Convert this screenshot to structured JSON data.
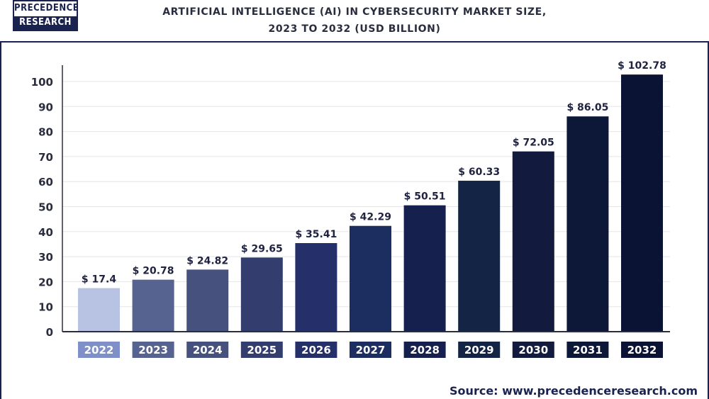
{
  "logo": {
    "line1": "PRECEDENCE",
    "line2": "RESEARCH"
  },
  "title_lines": [
    "ARTIFICIAL INTELLIGENCE (AI) IN CYBERSECURITY MARKET  SIZE,",
    "2023 TO 2032 (USD BILLION)"
  ],
  "source": "Source: www.precedenceresearch.com",
  "chart_data": {
    "type": "bar",
    "title": "ARTIFICIAL INTELLIGENCE (AI) IN CYBERSECURITY MARKET  SIZE, 2023 TO 2032 (USD BILLION)",
    "categories": [
      "2022",
      "2023",
      "2024",
      "2025",
      "2026",
      "2027",
      "2028",
      "2029",
      "2030",
      "2031",
      "2032"
    ],
    "values": [
      17.4,
      20.78,
      24.82,
      29.65,
      35.41,
      42.29,
      50.51,
      60.33,
      72.05,
      86.05,
      102.78
    ],
    "value_labels": [
      "$ 17.4",
      "$ 20.78",
      "$ 24.82",
      "$ 29.65",
      "$  35.41",
      "$ 42.29",
      "$ 50.51",
      "$ 60.33",
      "$ 72.05",
      "$ 86.05",
      "$ 102.78"
    ],
    "yticks": [
      0,
      10,
      20,
      30,
      40,
      50,
      60,
      70,
      80,
      90,
      100
    ],
    "ylim": [
      0,
      100
    ],
    "grid": true,
    "bar_colors": [
      "#b8c2e3",
      "#56628f",
      "#47517e",
      "#333e6e",
      "#25306a",
      "#1c2d60",
      "#15204f",
      "#142445",
      "#121a3e",
      "#0d1838",
      "#0b1335"
    ],
    "label_colors": [
      "#7f8fc7",
      "#56628f",
      "#47517e",
      "#333e6e",
      "#25306a",
      "#1c2d60",
      "#15204f",
      "#142445",
      "#121a3e",
      "#0d1838",
      "#0b1335"
    ],
    "xlabel": "",
    "ylabel": ""
  }
}
